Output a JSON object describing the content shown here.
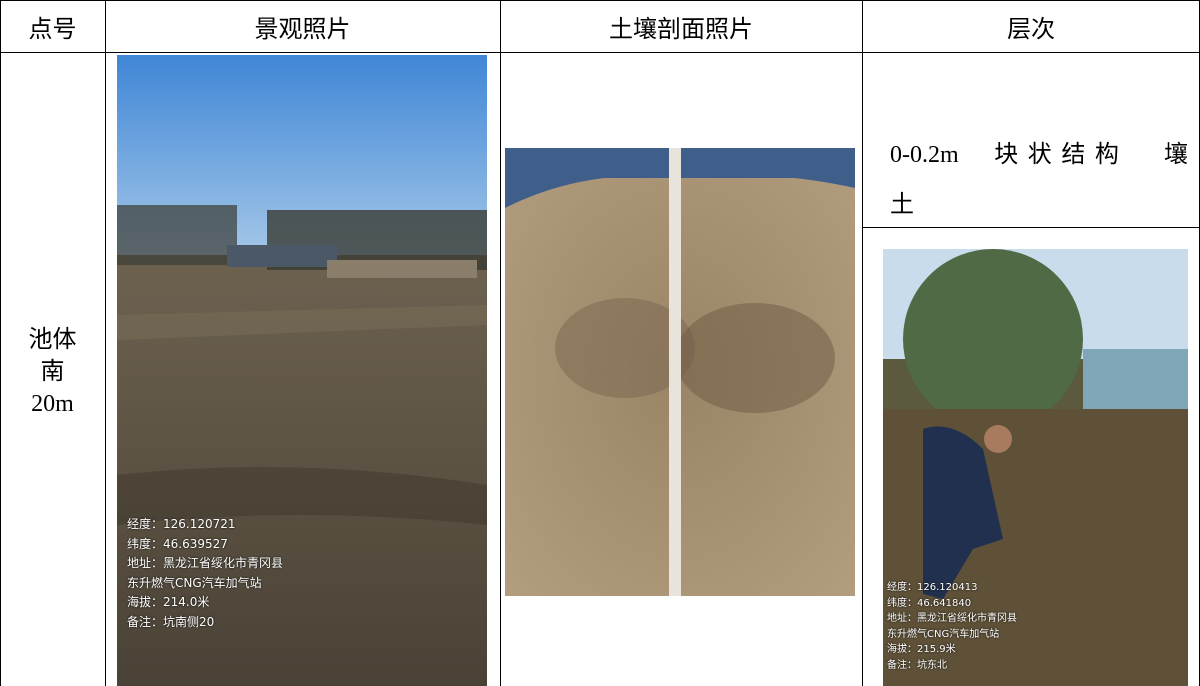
{
  "table": {
    "headers": [
      "点号",
      "景观照片",
      "土壤剖面照片",
      "层次"
    ],
    "rows": [
      {
        "point": [
          "池体",
          "南",
          "20m"
        ],
        "landscape_caption": [
          "经度：126.120721",
          "纬度：46.639527",
          "地址：黑龙江省绥化市青冈县",
          "东升燃气CNG汽车加气站",
          "海拔：214.0米",
          "备注：坑南侧20"
        ],
        "layer": [
          "0-0.2m 块状结构 壤",
          "土"
        ],
        "profile_caption": [
          "经度：126.120413",
          "纬度：46.641840",
          "地址：黑龙江省绥化市青冈县",
          "东升燃气CNG汽车加气站",
          "海拔：215.9米",
          "备注：坑东北"
        ]
      }
    ]
  }
}
